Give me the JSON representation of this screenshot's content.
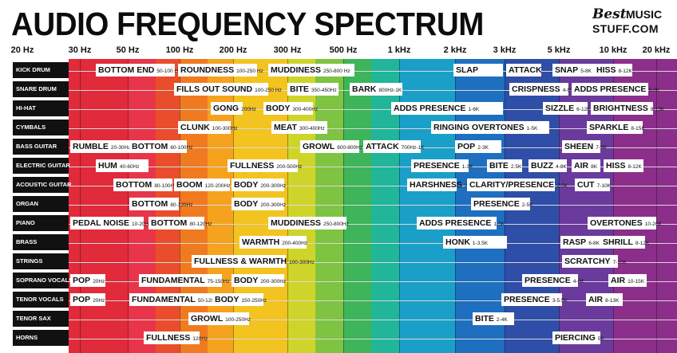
{
  "title": "AUDIO FREQUENCY SPECTRUM",
  "logo": {
    "best": "Best",
    "music": "MUSIC",
    "stuff": "STUFF.COM"
  },
  "frequency_labels": [
    "20 Hz",
    "30 Hz",
    "50 Hz",
    "100 Hz",
    "200 Hz",
    "300 Hz",
    "500 Hz",
    "1 kHz",
    "2 kHz",
    "3 kHz",
    "5 kHz",
    "10 kHz",
    "20 kHz"
  ],
  "band_colors": [
    "#e12a3a",
    "#e8354a",
    "#ea4d2c",
    "#f07a20",
    "#f5a21e",
    "#f3c31f",
    "#cfd42a",
    "#7fc342",
    "#3eb55a",
    "#21b59a",
    "#1aa0c8",
    "#1e6fc0",
    "#2f4ea8",
    "#6a3a9c",
    "#8c2f8a"
  ],
  "instruments": [
    {
      "name": "KICK DRUM",
      "tags": [
        {
          "name": "BOTTOM END",
          "range": "50-100 Hz"
        },
        {
          "name": "ROUNDNESS",
          "range": "100-250 Hz"
        },
        {
          "name": "MUDDINESS",
          "range": "250-800 Hz"
        },
        {
          "name": "SLAP",
          "range": ""
        },
        {
          "name": "ATTACK",
          "range": ""
        },
        {
          "name": "SNAP",
          "range": "5-8K"
        },
        {
          "name": "HISS",
          "range": "8-12K"
        }
      ]
    },
    {
      "name": "SNARE DRUM",
      "tags": [
        {
          "name": "FILLS OUT SOUND",
          "range": "100-250 Hz"
        },
        {
          "name": "BITE",
          "range": "350-450Hz"
        },
        {
          "name": "BARK",
          "range": "800Hz-1K"
        },
        {
          "name": "CRISPNESS",
          "range": "4-8K"
        },
        {
          "name": "ADDS PRESENCE",
          "range": "6-8K"
        }
      ]
    },
    {
      "name": "HI-HAT",
      "tags": [
        {
          "name": "GONG",
          "range": "200Hz"
        },
        {
          "name": "BODY",
          "range": "300-400Hz"
        },
        {
          "name": "ADDS PRESENCE",
          "range": "1-6K"
        },
        {
          "name": "SIZZLE",
          "range": "6-12K"
        },
        {
          "name": "BRIGHTNESS",
          "range": "9-15K"
        }
      ]
    },
    {
      "name": "CYMBALS",
      "tags": [
        {
          "name": "CLUNK",
          "range": "100-300Hz"
        },
        {
          "name": "MEAT",
          "range": "300-400Hz"
        },
        {
          "name": "RINGING OVERTONES",
          "range": "1-5K"
        },
        {
          "name": "SPARKLE",
          "range": "8-15K"
        }
      ]
    },
    {
      "name": "BASS GUITAR",
      "tags": [
        {
          "name": "RUMBLE",
          "range": "20-30Hz"
        },
        {
          "name": "BOTTOM",
          "range": "60-100Hz"
        },
        {
          "name": "GROWL",
          "range": "600-800Hz"
        },
        {
          "name": "ATTACK",
          "range": "700Hz-1K"
        },
        {
          "name": "POP",
          "range": "2-3K"
        },
        {
          "name": "SHEEN",
          "range": "7-9K"
        }
      ]
    },
    {
      "name": "ELECTRIC GUITAR",
      "tags": [
        {
          "name": "HUM",
          "range": "40-60Hz"
        },
        {
          "name": "FULLNESS",
          "range": "200-500Hz"
        },
        {
          "name": "PRESENCE",
          "range": "1-3K"
        },
        {
          "name": "BITE",
          "range": "2.5K"
        },
        {
          "name": "BUZZ",
          "range": "4-8K"
        },
        {
          "name": "AIR",
          "range": "8K"
        },
        {
          "name": "HISS",
          "range": "8-12K"
        }
      ]
    },
    {
      "name": "ACOUSTIC GUITAR",
      "tags": [
        {
          "name": "BOTTOM",
          "range": "80-100Hz"
        },
        {
          "name": "BOOM",
          "range": "120-200Hz"
        },
        {
          "name": "BODY",
          "range": "200-300Hz"
        },
        {
          "name": "HARSHNESS",
          "range": "2K"
        },
        {
          "name": "CLARITY/PRESENCE",
          "range": "2-5K"
        },
        {
          "name": "CUT",
          "range": "7-10K"
        }
      ]
    },
    {
      "name": "ORGAN",
      "tags": [
        {
          "name": "BOTTOM",
          "range": "80-120Hz"
        },
        {
          "name": "BODY",
          "range": "200-300Hz"
        },
        {
          "name": "PRESENCE",
          "range": "2-5K"
        }
      ]
    },
    {
      "name": "PIANO",
      "tags": [
        {
          "name": "PEDAL NOISE",
          "range": "10-20Hz"
        },
        {
          "name": "BOTTOM",
          "range": "80-120Hz"
        },
        {
          "name": "MUDDINESS",
          "range": "250-800Hz"
        },
        {
          "name": "ADDS PRESENCE",
          "range": "1-5K"
        },
        {
          "name": "OVERTONES",
          "range": "10-20K"
        }
      ]
    },
    {
      "name": "BRASS",
      "tags": [
        {
          "name": "WARMTH",
          "range": "200-400Hz"
        },
        {
          "name": "HONK",
          "range": "1-3.5K"
        },
        {
          "name": "RASP",
          "range": "6-8K"
        },
        {
          "name": "SHRILL",
          "range": "8-12K"
        }
      ]
    },
    {
      "name": "STRINGS",
      "tags": [
        {
          "name": "FULLNESS & WARMTH",
          "range": "100-300Hz"
        },
        {
          "name": "SCRATCHY",
          "range": "7-10K"
        }
      ]
    },
    {
      "name": "SOPRANO VOCALS",
      "tags": [
        {
          "name": "POP",
          "range": "20Hz"
        },
        {
          "name": "FUNDAMENTAL",
          "range": "75-150Hz"
        },
        {
          "name": "BODY",
          "range": "200-300Hz"
        },
        {
          "name": "PRESENCE",
          "range": "4-6K"
        },
        {
          "name": "AIR",
          "range": "10-15K"
        }
      ]
    },
    {
      "name": "TENOR VOCALS",
      "tags": [
        {
          "name": "POP",
          "range": "20Hz"
        },
        {
          "name": "FUNDAMENTAL",
          "range": "50-120Hz"
        },
        {
          "name": "BODY",
          "range": "150-250Hz"
        },
        {
          "name": "PRESENCE",
          "range": "3-5.5K"
        },
        {
          "name": "AIR",
          "range": "8-13K"
        }
      ]
    },
    {
      "name": "TENOR SAX",
      "tags": [
        {
          "name": "GROWL",
          "range": "100-250Hz"
        },
        {
          "name": "BITE",
          "range": "2-4K"
        }
      ]
    },
    {
      "name": "HORNS",
      "tags": [
        {
          "name": "FULLNESS",
          "range": "120Hz"
        },
        {
          "name": "PIERCING",
          "range": "5K"
        }
      ]
    }
  ]
}
